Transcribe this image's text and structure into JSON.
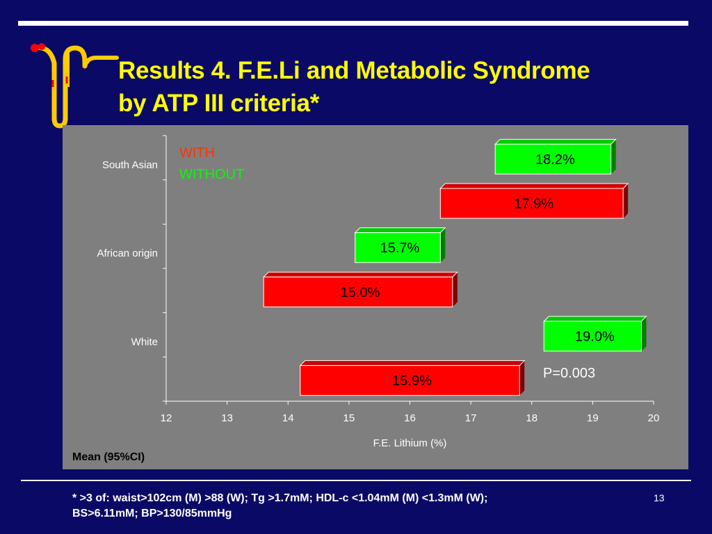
{
  "slide": {
    "title_line1": "Results 4. F.E.Li and Metabolic Syndrome",
    "title_line2": "by ATP III criteria*",
    "footnote_line1": "* >3 of: waist>102cm (M) >88 (W); Tg >1.7mM; HDL-c <1.04mM (M) <1.3mM (W);",
    "footnote_line2": "BS>6.11mM; BP>130/85mmHg",
    "page_number": "13"
  },
  "colors": {
    "background": "#0a0a66",
    "title": "#ffff00",
    "panel": "#7f7f7f",
    "with": "#ff0000",
    "without": "#00ff00",
    "with_label": "#ff3300",
    "without_label": "#00ff00"
  },
  "chart_data": {
    "type": "bar",
    "orientation": "horizontal",
    "style": "3d",
    "categories": [
      "South Asian",
      "African origin",
      "White"
    ],
    "series": [
      {
        "name": "WITHOUT",
        "color": "#00ff00",
        "lows": [
          17.4,
          15.1,
          18.2
        ],
        "highs": [
          19.3,
          16.5,
          19.8
        ],
        "values": [
          18.2,
          15.7,
          19.0
        ],
        "labels": [
          "18.2%",
          "15.7%",
          "19.0%"
        ]
      },
      {
        "name": "WITH",
        "color": "#ff0000",
        "lows": [
          16.5,
          13.6,
          14.2
        ],
        "highs": [
          19.5,
          16.7,
          17.8
        ],
        "values": [
          17.9,
          15.0,
          15.9
        ],
        "labels": [
          "17.9%",
          "15.0%",
          "15.9%"
        ]
      }
    ],
    "xlabel": "F.E. Lithium (%)",
    "xlim": [
      12,
      20
    ],
    "xticks": [
      "12",
      "13",
      "14",
      "15",
      "16",
      "17",
      "18",
      "19",
      "20"
    ],
    "legend": [
      "WITH",
      "WITHOUT"
    ],
    "legend_position": "top-left",
    "annotation": "P=0.003",
    "corner_note": "Mean (95%CI)",
    "grid": false
  }
}
